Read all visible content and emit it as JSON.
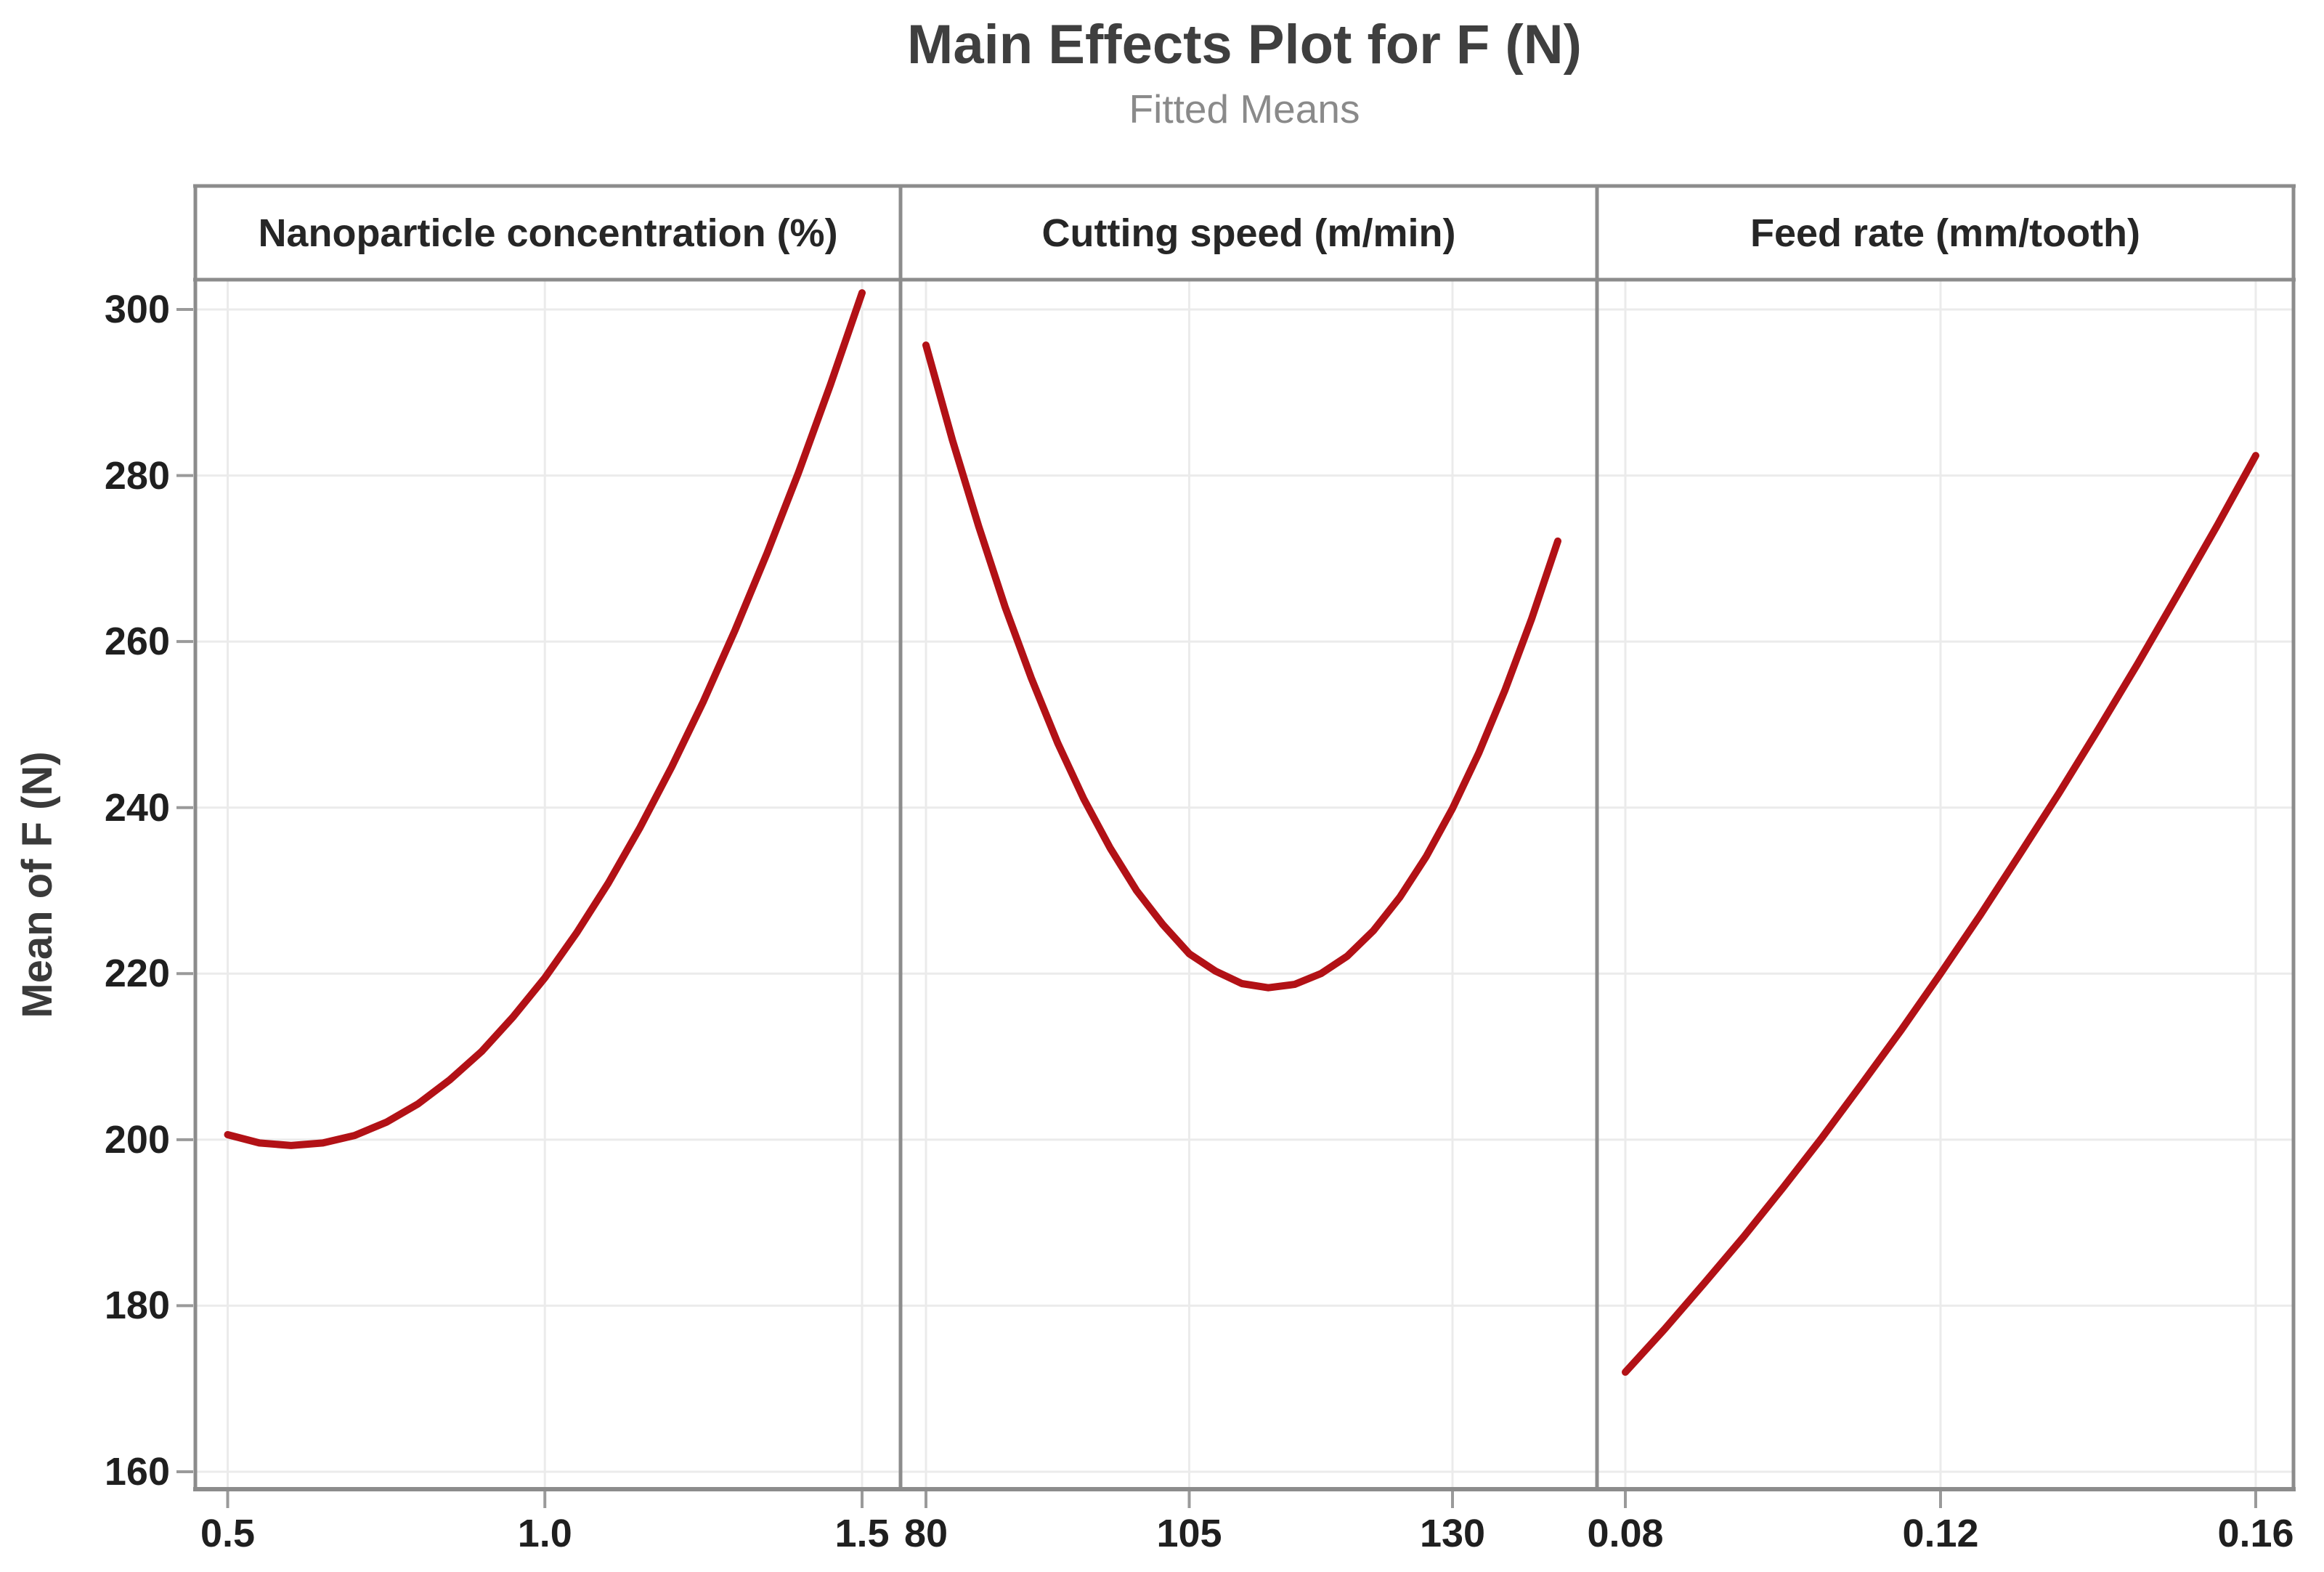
{
  "title": "Main Effects Plot for F (N)",
  "subtitle": "Fitted Means",
  "y_axis": {
    "title": "Mean of F (N)",
    "tick_labels": [
      "160",
      "180",
      "200",
      "220",
      "240",
      "260",
      "280",
      "300"
    ],
    "tick_values": [
      160,
      180,
      200,
      220,
      240,
      260,
      280,
      300
    ]
  },
  "colors": {
    "curve": "#b21116",
    "border": "#8c8c8c",
    "grid": "#ebebeb",
    "tick": "#9a9a9a",
    "title_text": "#3f3f3f",
    "subtitle_text": "#8a8a8a",
    "axis_text": "#1f1f1f",
    "header_text": "#262626",
    "background": "#ffffff"
  },
  "chart_data": {
    "type": "line",
    "title": "Main Effects Plot for F (N)",
    "subtitle": "Fitted Means",
    "ylabel": "Mean of F (N)",
    "ylim": [
      160,
      300
    ],
    "grid": "on",
    "legend": "none",
    "series_color": "#b21116",
    "panels": [
      {
        "label": "Nanoparticle concentration (%)",
        "x_tick_labels": [
          "0.5",
          "1.0",
          "1.5"
        ],
        "x_tick_values": [
          0.5,
          1.0,
          1.5
        ],
        "x_range": [
          0.5,
          1.5
        ],
        "points": [
          [
            0.5,
            200.6
          ],
          [
            0.55,
            199.6
          ],
          [
            0.6,
            199.3
          ],
          [
            0.65,
            199.6
          ],
          [
            0.7,
            200.5
          ],
          [
            0.75,
            202.1
          ],
          [
            0.8,
            204.3
          ],
          [
            0.85,
            207.2
          ],
          [
            0.9,
            210.6
          ],
          [
            0.95,
            214.8
          ],
          [
            1.0,
            219.5
          ],
          [
            1.05,
            224.9
          ],
          [
            1.1,
            230.9
          ],
          [
            1.15,
            237.6
          ],
          [
            1.2,
            244.9
          ],
          [
            1.25,
            252.8
          ],
          [
            1.3,
            261.4
          ],
          [
            1.35,
            270.6
          ],
          [
            1.4,
            280.4
          ],
          [
            1.45,
            290.9
          ],
          [
            1.5,
            302.0
          ]
        ]
      },
      {
        "label": "Cutting speed (m/min)",
        "x_tick_labels": [
          "80",
          "105",
          "130"
        ],
        "x_tick_values": [
          80,
          105,
          130
        ],
        "x_range": [
          80,
          140
        ],
        "points": [
          [
            80,
            295.7
          ],
          [
            82.5,
            284.3
          ],
          [
            85,
            273.9
          ],
          [
            87.5,
            264.2
          ],
          [
            90,
            255.6
          ],
          [
            92.5,
            247.8
          ],
          [
            95,
            241.0
          ],
          [
            97.5,
            235.1
          ],
          [
            100,
            230.0
          ],
          [
            102.5,
            225.9
          ],
          [
            105,
            222.4
          ],
          [
            107.5,
            220.3
          ],
          [
            110,
            218.8
          ],
          [
            112.5,
            218.3
          ],
          [
            115,
            218.7
          ],
          [
            117.5,
            220.0
          ],
          [
            120,
            222.1
          ],
          [
            122.5,
            225.2
          ],
          [
            125,
            229.2
          ],
          [
            127.5,
            234.1
          ],
          [
            130,
            239.9
          ],
          [
            132.5,
            246.6
          ],
          [
            135,
            254.2
          ],
          [
            137.5,
            262.7
          ],
          [
            140,
            272.1
          ]
        ]
      },
      {
        "label": "Feed rate (mm/tooth)",
        "x_tick_labels": [
          "0.08",
          "0.12",
          "0.16"
        ],
        "x_tick_values": [
          0.08,
          0.12,
          0.16
        ],
        "x_range": [
          0.08,
          0.16
        ],
        "points": [
          [
            0.08,
            172.0
          ],
          [
            0.085,
            177.2
          ],
          [
            0.09,
            182.7
          ],
          [
            0.095,
            188.3
          ],
          [
            0.1,
            194.2
          ],
          [
            0.105,
            200.3
          ],
          [
            0.11,
            206.7
          ],
          [
            0.115,
            213.2
          ],
          [
            0.12,
            220.0
          ],
          [
            0.125,
            227.0
          ],
          [
            0.13,
            234.3
          ],
          [
            0.135,
            241.7
          ],
          [
            0.14,
            249.4
          ],
          [
            0.145,
            257.3
          ],
          [
            0.15,
            265.5
          ],
          [
            0.155,
            273.8
          ],
          [
            0.16,
            282.4
          ]
        ]
      }
    ]
  }
}
